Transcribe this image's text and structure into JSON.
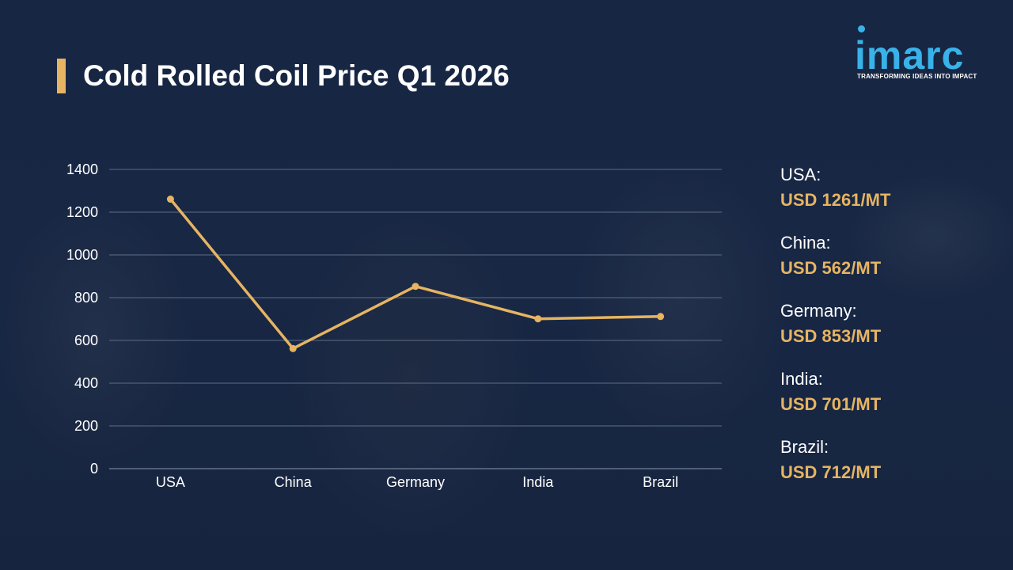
{
  "title": "Cold Rolled Coil Price Q1 2026",
  "logo": {
    "name": "imarc",
    "tagline": "TRANSFORMING IDEAS INTO IMPACT"
  },
  "colors": {
    "accent": "#e6b462",
    "brand": "#39b2ea",
    "background": "#1b2a46",
    "grid": "#5d6c86"
  },
  "chart_data": {
    "type": "line",
    "categories": [
      "USA",
      "China",
      "Germany",
      "India",
      "Brazil"
    ],
    "series": [
      {
        "values": [
          1261,
          562,
          853,
          701,
          712
        ]
      }
    ],
    "ylim": [
      0,
      1400
    ],
    "yticks": [
      0,
      200,
      400,
      600,
      800,
      1000,
      1200,
      1400
    ],
    "grid": true
  },
  "summary": [
    {
      "country": "USA:",
      "value": "USD 1261/MT"
    },
    {
      "country": "China:",
      "value": "USD 562/MT"
    },
    {
      "country": "Germany:",
      "value": "USD 853/MT"
    },
    {
      "country": "India:",
      "value": "USD 701/MT"
    },
    {
      "country": "Brazil:",
      "value": "USD 712/MT"
    }
  ]
}
